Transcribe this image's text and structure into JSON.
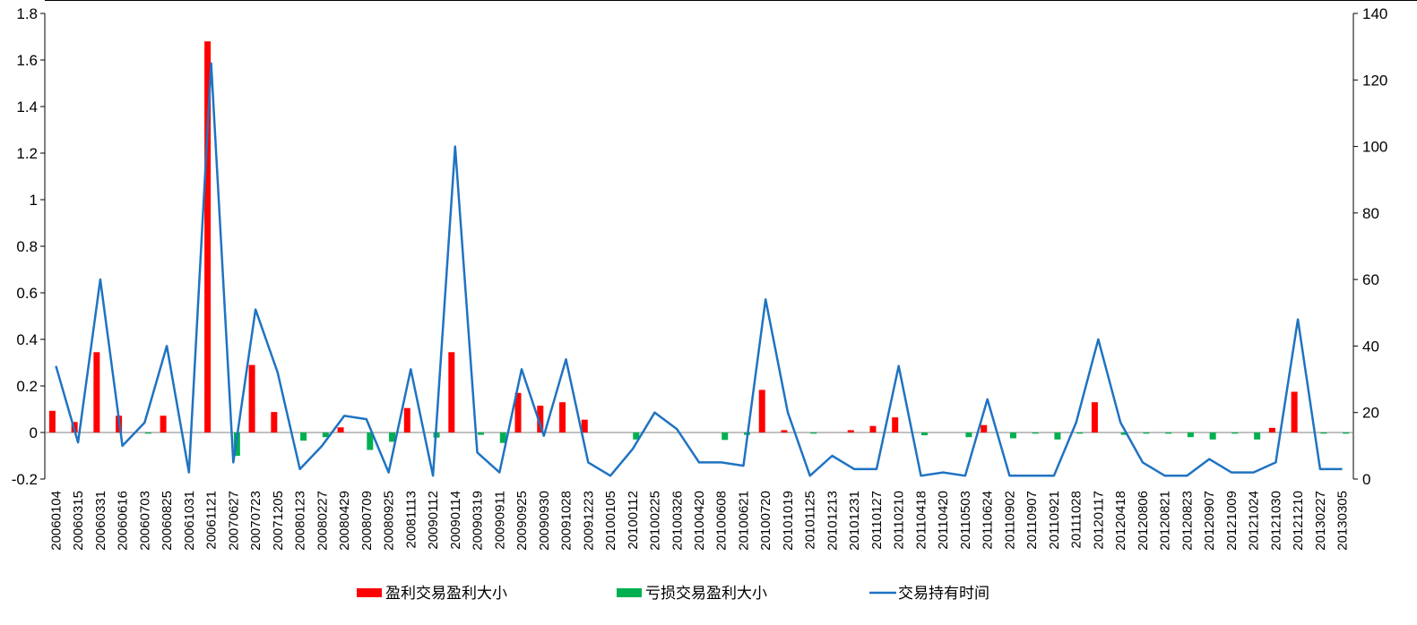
{
  "chart_data": {
    "type": "bar",
    "title": "",
    "xlabel": "",
    "ylabel": "",
    "ylim": [
      -0.2,
      1.8
    ],
    "yticks": [
      -0.2,
      0,
      0.2,
      0.4,
      0.6,
      0.8,
      1,
      1.2,
      1.4,
      1.6,
      1.8
    ],
    "y2lim": [
      0,
      140
    ],
    "y2ticks": [
      0,
      20,
      40,
      60,
      80,
      100,
      120,
      140
    ],
    "grid": false,
    "legend_position": "bottom",
    "categories": [
      "20060104",
      "20060315",
      "20060331",
      "20060616",
      "20060703",
      "20060825",
      "20061031",
      "20061121",
      "20070627",
      "20070723",
      "20071205",
      "20080123",
      "20080227",
      "20080429",
      "20080709",
      "20080925",
      "20081113",
      "20090112",
      "20090114",
      "20090319",
      "20090911",
      "20090925",
      "20090930",
      "20091028",
      "20091223",
      "20100105",
      "20100112",
      "20100225",
      "20100326",
      "20100420",
      "20100608",
      "20100621",
      "20100720",
      "20101019",
      "20101125",
      "20101213",
      "20101231",
      "20110127",
      "20110210",
      "20110418",
      "20110420",
      "20110503",
      "20110624",
      "20110902",
      "20110907",
      "20110921",
      "20111028",
      "20120117",
      "20120418",
      "20120806",
      "20120821",
      "20120823",
      "20120907",
      "20121009",
      "20121024",
      "20121030",
      "20121210",
      "20130227",
      "20130305"
    ],
    "series": [
      {
        "name": "盈利交易盈利大小",
        "type": "bar",
        "axis": "left",
        "color": "#ff0000",
        "values": [
          0.093,
          0.045,
          0.345,
          0.072,
          0,
          0.072,
          0,
          1.68,
          0,
          0.29,
          0.088,
          0,
          0,
          0.022,
          0,
          0,
          0.105,
          0,
          0.345,
          0,
          0,
          0.17,
          0.115,
          0.13,
          0.055,
          0,
          0,
          0,
          0,
          0,
          0,
          0,
          0.183,
          0.01,
          0,
          0,
          0.01,
          0.028,
          0.065,
          0,
          0,
          0,
          0.032,
          0,
          0,
          0,
          0,
          0.13,
          0,
          0,
          0,
          0,
          0,
          0,
          0,
          0.02,
          0.175,
          0,
          0
        ]
      },
      {
        "name": "亏损交易盈利大小",
        "type": "bar",
        "axis": "left",
        "color": "#00b050",
        "values": [
          0,
          0,
          0,
          0,
          -0.005,
          0,
          0,
          0,
          -0.1,
          0,
          0,
          -0.035,
          -0.02,
          0,
          -0.075,
          -0.04,
          0,
          -0.022,
          0,
          -0.01,
          -0.045,
          0,
          0,
          0,
          0,
          0,
          -0.03,
          0,
          0,
          0,
          -0.032,
          -0.01,
          0,
          0,
          -0.005,
          0,
          0,
          0,
          0,
          -0.012,
          0,
          -0.02,
          0,
          -0.025,
          -0.005,
          -0.03,
          -0.005,
          0,
          -0.01,
          -0.005,
          -0.005,
          -0.02,
          -0.03,
          -0.005,
          -0.03,
          0,
          0,
          -0.005,
          -0.005
        ]
      },
      {
        "name": "交易持有时间",
        "type": "line",
        "axis": "right",
        "color": "#1f73c2",
        "values": [
          34,
          11,
          60,
          10,
          17,
          40,
          2,
          125,
          5,
          51,
          32,
          3,
          10,
          19,
          18,
          2,
          33,
          1,
          100,
          8,
          2,
          33,
          13,
          36,
          5,
          1,
          9,
          20,
          15,
          5,
          5,
          4,
          54,
          20,
          1,
          7,
          3,
          3,
          34,
          1,
          2,
          1,
          24,
          1,
          1,
          1,
          17,
          42,
          17,
          5,
          1,
          1,
          6,
          2,
          2,
          5,
          48,
          3,
          3
        ]
      }
    ]
  }
}
